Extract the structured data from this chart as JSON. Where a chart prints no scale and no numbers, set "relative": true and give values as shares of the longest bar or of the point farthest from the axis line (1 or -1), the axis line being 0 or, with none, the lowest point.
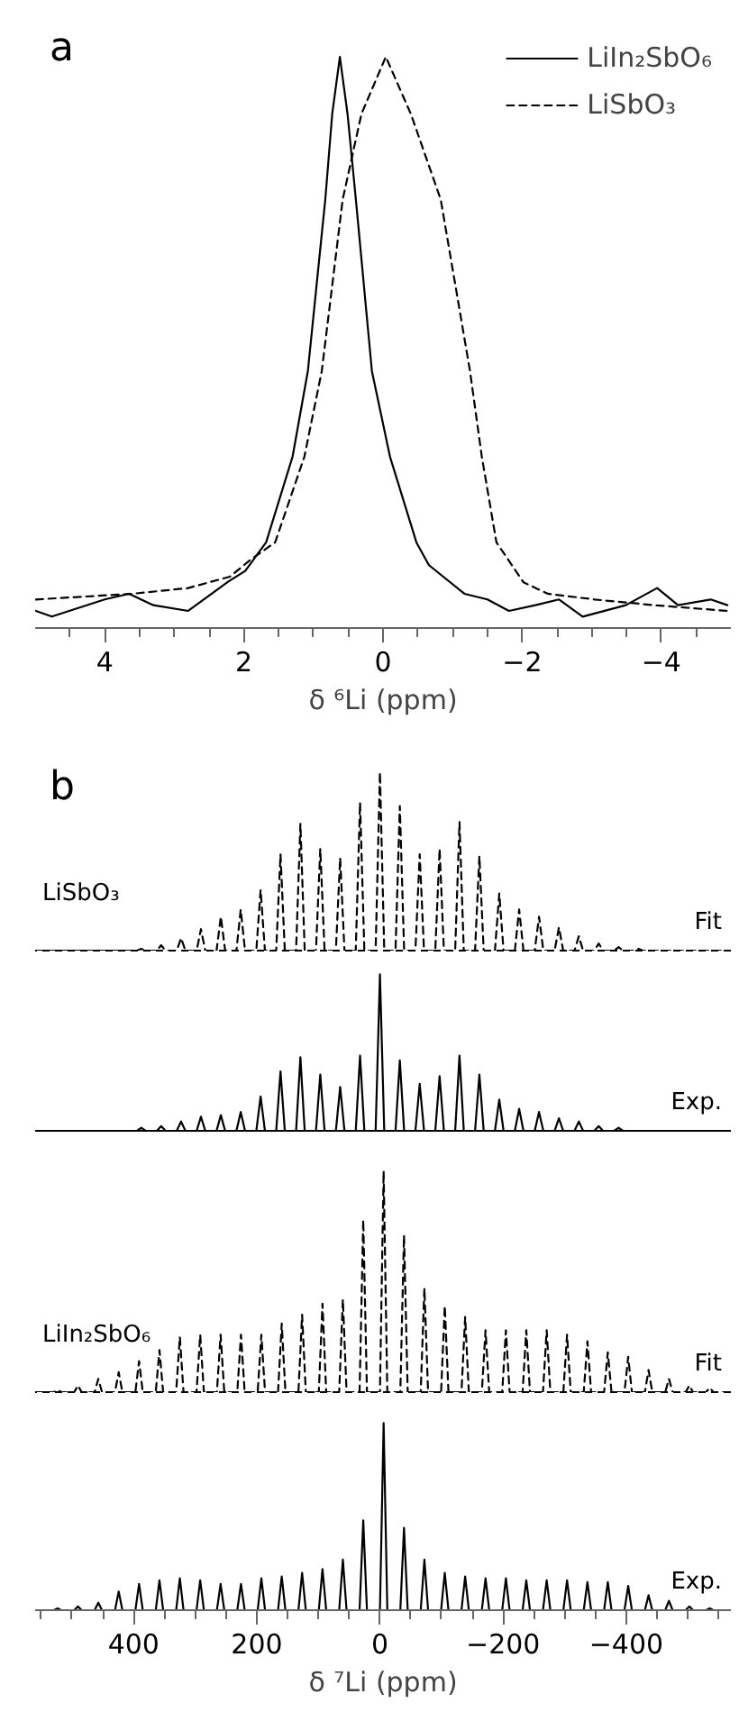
{
  "chart_data": [
    {
      "type": "line",
      "relative": true,
      "xlabel": "δ ⁶Li (ppm)",
      "xlim": [
        5,
        -5
      ],
      "xticks": [
        {
          "value": 4.5,
          "label": null
        },
        4,
        {
          "value": 3.5,
          "label": null
        },
        {
          "value": 3,
          "label": null
        },
        {
          "value": 2.5,
          "label": null
        },
        2,
        {
          "value": 1.5,
          "label": null
        },
        {
          "value": 1,
          "label": null
        },
        {
          "value": 0.5,
          "label": null
        },
        0,
        {
          "value": -0.5,
          "label": null
        },
        {
          "value": -1,
          "label": null
        },
        {
          "value": -1.5,
          "label": null
        },
        {
          "value": -2,
          "label": "−2"
        },
        {
          "value": -2.5,
          "label": null
        },
        {
          "value": -3,
          "label": null
        },
        {
          "value": -3.5,
          "label": null
        },
        {
          "value": -4,
          "label": "−4"
        },
        {
          "value": -4.5,
          "label": null
        }
      ],
      "tick_labels": "x",
      "legend": "top right",
      "annotations": [
        "a"
      ],
      "series": [
        {
          "name": "LiIn₂SbO₆",
          "color": "#000000",
          "line_style": "solid",
          "x": [
            4.99,
            4.76,
            4.0,
            3.65,
            3.3,
            2.8,
            2.24,
            1.98,
            1.68,
            1.3,
            1.08,
            0.83,
            0.73,
            0.62,
            0.51,
            0.39,
            0.16,
            -0.1,
            -0.48,
            -0.66,
            -1.17,
            -1.5,
            -1.81,
            -2.19,
            -2.53,
            -2.87,
            -3.49,
            -3.94,
            -4.24,
            -4.71,
            -4.95
          ],
          "values": [
            0.03,
            0.02,
            0.05,
            0.06,
            0.04,
            0.03,
            0.08,
            0.1,
            0.15,
            0.3,
            0.45,
            0.75,
            0.9,
            1,
            0.9,
            0.75,
            0.45,
            0.3,
            0.15,
            0.11,
            0.06,
            0.05,
            0.03,
            0.04,
            0.05,
            0.02,
            0.04,
            0.07,
            0.04,
            0.05,
            0.04
          ]
        },
        {
          "name": "LiSbO₃",
          "color": "#000000",
          "line_style": "dashed",
          "x": [
            4.99,
            3.6,
            2.8,
            2.2,
            1.9,
            1.55,
            1.13,
            0.88,
            0.58,
            0.31,
            -0.04,
            -0.4,
            -0.83,
            -1.25,
            -1.42,
            -1.63,
            -2.02,
            -2.37,
            -3.04,
            -3.9,
            -4.95
          ],
          "values": [
            0.05,
            0.06,
            0.07,
            0.09,
            0.12,
            0.15,
            0.3,
            0.45,
            0.75,
            0.9,
            1,
            0.9,
            0.75,
            0.45,
            0.3,
            0.15,
            0.08,
            0.06,
            0.05,
            0.04,
            0.03
          ]
        }
      ]
    },
    {
      "type": "line",
      "relative": true,
      "xlim": [
        560,
        -570
      ],
      "tick_labels": false,
      "line_style": "dashed",
      "color": "#000000",
      "annotations": [
        "b",
        "LiSbO₃",
        "Fit"
      ],
      "x": [
        560,
        394.6,
        387.6,
        380.6,
        362.3,
        355.3,
        348.3,
        330,
        323,
        316,
        297.7,
        290.7,
        283.7,
        265.4,
        258.4,
        251.4,
        233.1,
        226.1,
        219.1,
        200.8,
        193.8,
        186.8,
        168.5,
        161.5,
        154.5,
        136.2,
        129.2,
        122.2,
        103.9,
        96.9,
        89.9,
        71.6,
        64.6,
        57.6,
        39.3,
        32.3,
        25.3,
        7,
        0,
        -7,
        -25.3,
        -32.3,
        -39.3,
        -57.6,
        -64.6,
        -71.6,
        -89.9,
        -96.9,
        -103.9,
        -122.2,
        -129.2,
        -136.2,
        -154.5,
        -161.5,
        -168.5,
        -186.8,
        -193.8,
        -200.8,
        -219.1,
        -226.1,
        -233.1,
        -251.4,
        -258.4,
        -265.4,
        -283.7,
        -290.7,
        -297.7,
        -316,
        -323,
        -330,
        -348.3,
        -355.3,
        -362.3,
        -380.6,
        -387.6,
        -394.6,
        -412.9,
        -419.9,
        -426.9,
        -570
      ],
      "values": [
        0,
        0,
        0.01,
        0,
        0,
        0.03,
        0,
        0,
        0.07,
        0,
        0,
        0.12,
        0,
        0,
        0.19,
        0,
        0,
        0.23,
        0,
        0,
        0.34,
        0,
        0,
        0.54,
        0,
        0,
        0.71,
        0,
        0,
        0.57,
        0,
        0,
        0.52,
        0,
        0,
        0.83,
        0,
        0,
        1,
        0,
        0,
        0.81,
        0,
        0,
        0.54,
        0,
        0,
        0.57,
        0,
        0,
        0.72,
        0,
        0,
        0.53,
        0,
        0,
        0.32,
        0,
        0,
        0.23,
        0,
        0,
        0.19,
        0,
        0,
        0.13,
        0,
        0,
        0.08,
        0,
        0,
        0.04,
        0,
        0,
        0.02,
        0,
        0,
        0.01,
        0,
        0
      ]
    },
    {
      "type": "line",
      "relative": true,
      "xlim": [
        560,
        -570
      ],
      "tick_labels": false,
      "line_style": "solid",
      "color": "#000000",
      "annotations": [
        "Exp."
      ],
      "x": [
        560,
        394.6,
        387.6,
        380.6,
        362.3,
        355.3,
        348.3,
        330,
        323,
        316,
        297.7,
        290.7,
        283.7,
        265.4,
        258.4,
        251.4,
        233.1,
        226.1,
        219.1,
        200.8,
        193.8,
        186.8,
        168.5,
        161.5,
        154.5,
        136.2,
        129.2,
        122.2,
        103.9,
        96.9,
        89.9,
        71.6,
        64.6,
        57.6,
        39.3,
        32.3,
        25.3,
        7,
        0,
        -7,
        -25.3,
        -32.3,
        -39.3,
        -57.6,
        -64.6,
        -71.6,
        -89.9,
        -96.9,
        -103.9,
        -122.2,
        -129.2,
        -136.2,
        -154.5,
        -161.5,
        -168.5,
        -186.8,
        -193.8,
        -200.8,
        -219.1,
        -226.1,
        -233.1,
        -251.4,
        -258.4,
        -265.4,
        -283.7,
        -290.7,
        -297.7,
        -316,
        -323,
        -330,
        -348.3,
        -355.3,
        -362.3,
        -380.6,
        -387.6,
        -394.6,
        -570
      ],
      "values": [
        0,
        0,
        0.02,
        0,
        0,
        0.03,
        0,
        0,
        0.06,
        0,
        0,
        0.09,
        0,
        0,
        0.1,
        0,
        0,
        0.12,
        0,
        0,
        0.22,
        0,
        0,
        0.38,
        0,
        0,
        0.47,
        0,
        0,
        0.36,
        0,
        0,
        0.28,
        0,
        0,
        0.48,
        0,
        0,
        1,
        0,
        0,
        0.45,
        0,
        0,
        0.3,
        0,
        0,
        0.35,
        0,
        0,
        0.48,
        0,
        0,
        0.36,
        0,
        0,
        0.2,
        0,
        0,
        0.14,
        0,
        0,
        0.12,
        0,
        0,
        0.08,
        0,
        0,
        0.06,
        0,
        0,
        0.03,
        0,
        0,
        0.02,
        0,
        0
      ]
    },
    {
      "type": "line",
      "relative": true,
      "xlim": [
        560,
        -570
      ],
      "tick_labels": false,
      "line_style": "dashed",
      "color": "#000000",
      "annotations": [
        "LiIn₂SbO₆",
        "Fit"
      ],
      "x": [
        560,
        529.6,
        523.6,
        517.6,
        496.5,
        490.5,
        484.5,
        463.4,
        457.4,
        451.4,
        430.3,
        424.3,
        418.3,
        397.2,
        391.2,
        385.2,
        364.1,
        358.1,
        352.1,
        331,
        325,
        319,
        297.9,
        291.9,
        285.9,
        264.8,
        258.8,
        252.8,
        231.7,
        225.7,
        219.7,
        198.6,
        192.6,
        186.6,
        165.5,
        159.5,
        153.5,
        132.4,
        126.4,
        120.4,
        99.3,
        93.3,
        87.3,
        66.2,
        60.2,
        54.2,
        33.1,
        27.1,
        21.1,
        0,
        -6,
        -12,
        -33.1,
        -39.1,
        -45.1,
        -66.2,
        -72.2,
        -78.2,
        -99.3,
        -105.3,
        -111.3,
        -132.4,
        -138.4,
        -144.4,
        -165.5,
        -171.5,
        -177.5,
        -198.6,
        -204.6,
        -210.6,
        -231.7,
        -237.7,
        -243.7,
        -264.8,
        -270.8,
        -276.8,
        -297.9,
        -303.9,
        -309.9,
        -331,
        -337,
        -343,
        -364.1,
        -370.1,
        -376.1,
        -397.2,
        -403.2,
        -409.2,
        -430.3,
        -436.3,
        -442.3,
        -463.4,
        -469.4,
        -475.4,
        -496.5,
        -502.5,
        -508.5,
        -529.6,
        -535.6,
        -541.6,
        -570
      ],
      "values": [
        0,
        0,
        0.01,
        0,
        0,
        0.03,
        0,
        0,
        0.06,
        0,
        0,
        0.09,
        0,
        0,
        0.14,
        0,
        0,
        0.19,
        0,
        0,
        0.25,
        0,
        0,
        0.26,
        0,
        0,
        0.26,
        0,
        0,
        0.26,
        0,
        0,
        0.26,
        0,
        0,
        0.31,
        0,
        0,
        0.35,
        0,
        0,
        0.4,
        0,
        0,
        0.42,
        0,
        0,
        0.78,
        0,
        0,
        1,
        0,
        0,
        0.71,
        0,
        0,
        0.47,
        0,
        0,
        0.39,
        0,
        0,
        0.34,
        0,
        0,
        0.28,
        0,
        0,
        0.28,
        0,
        0,
        0.28,
        0,
        0,
        0.28,
        0,
        0,
        0.26,
        0,
        0,
        0.23,
        0,
        0,
        0.18,
        0,
        0,
        0.16,
        0,
        0,
        0.1,
        0,
        0,
        0.06,
        0,
        0,
        0.03,
        0,
        0,
        0.02,
        0,
        0
      ]
    },
    {
      "type": "line",
      "relative": true,
      "xlim": [
        560,
        -570
      ],
      "tick_labels": "x",
      "line_style": "solid",
      "color": "#000000",
      "annotations": [
        "Exp."
      ],
      "xlabel": "δ ⁷Li (ppm)",
      "xticks": [
        {
          "value": 550,
          "label": null
        },
        {
          "value": 500,
          "label": null
        },
        {
          "value": 450,
          "label": null
        },
        400,
        {
          "value": 350,
          "label": null
        },
        {
          "value": 300,
          "label": null
        },
        {
          "value": 250,
          "label": null
        },
        200,
        {
          "value": 150,
          "label": null
        },
        {
          "value": 100,
          "label": null
        },
        {
          "value": 50,
          "label": null
        },
        0,
        {
          "value": -50,
          "label": null
        },
        {
          "value": -100,
          "label": null
        },
        {
          "value": -150,
          "label": null
        },
        {
          "value": -200,
          "label": "−200"
        },
        {
          "value": -250,
          "label": null
        },
        {
          "value": -300,
          "label": null
        },
        {
          "value": -350,
          "label": null
        },
        {
          "value": -400,
          "label": "−400"
        },
        {
          "value": -450,
          "label": null
        },
        {
          "value": -500,
          "label": null
        },
        {
          "value": -550,
          "label": null
        }
      ],
      "x": [
        560,
        529.6,
        523.6,
        517.6,
        496.5,
        490.5,
        484.5,
        463.4,
        457.4,
        451.4,
        430.3,
        424.3,
        418.3,
        397.2,
        391.2,
        385.2,
        364.1,
        358.1,
        352.1,
        331,
        325,
        319,
        297.9,
        291.9,
        285.9,
        264.8,
        258.8,
        252.8,
        231.7,
        225.7,
        219.7,
        198.6,
        192.6,
        186.6,
        165.5,
        159.5,
        153.5,
        132.4,
        126.4,
        120.4,
        99.3,
        93.3,
        87.3,
        66.2,
        60.2,
        54.2,
        33.1,
        27.1,
        21.1,
        0,
        -6,
        -12,
        -33.1,
        -39.1,
        -45.1,
        -66.2,
        -72.2,
        -78.2,
        -99.3,
        -105.3,
        -111.3,
        -132.4,
        -138.4,
        -144.4,
        -165.5,
        -171.5,
        -177.5,
        -198.6,
        -204.6,
        -210.6,
        -231.7,
        -237.7,
        -243.7,
        -264.8,
        -270.8,
        -276.8,
        -297.9,
        -303.9,
        -309.9,
        -331,
        -337,
        -343,
        -364.1,
        -370.1,
        -376.1,
        -397.2,
        -403.2,
        -409.2,
        -430.3,
        -436.3,
        -442.3,
        -463.4,
        -469.4,
        -475.4,
        -496.5,
        -502.5,
        -508.5,
        -529.6,
        -535.6,
        -541.6,
        -570
      ],
      "values": [
        0,
        0,
        0.01,
        0,
        0,
        0.02,
        0,
        0,
        0.04,
        0,
        0,
        0.1,
        0,
        0,
        0.14,
        0,
        0,
        0.16,
        0,
        0,
        0.17,
        0,
        0,
        0.16,
        0,
        0,
        0.14,
        0,
        0,
        0.14,
        0,
        0,
        0.17,
        0,
        0,
        0.18,
        0,
        0,
        0.2,
        0,
        0,
        0.22,
        0,
        0,
        0.27,
        0,
        0,
        0.48,
        0,
        0,
        1,
        0,
        0,
        0.44,
        0,
        0,
        0.27,
        0,
        0,
        0.2,
        0,
        0,
        0.18,
        0,
        0,
        0.17,
        0,
        0,
        0.17,
        0,
        0,
        0.16,
        0,
        0,
        0.16,
        0,
        0,
        0.16,
        0,
        0,
        0.15,
        0,
        0,
        0.15,
        0,
        0,
        0.13,
        0,
        0,
        0.08,
        0,
        0,
        0.05,
        0,
        0,
        0.02,
        0,
        0,
        0.01,
        0,
        0
      ]
    }
  ]
}
